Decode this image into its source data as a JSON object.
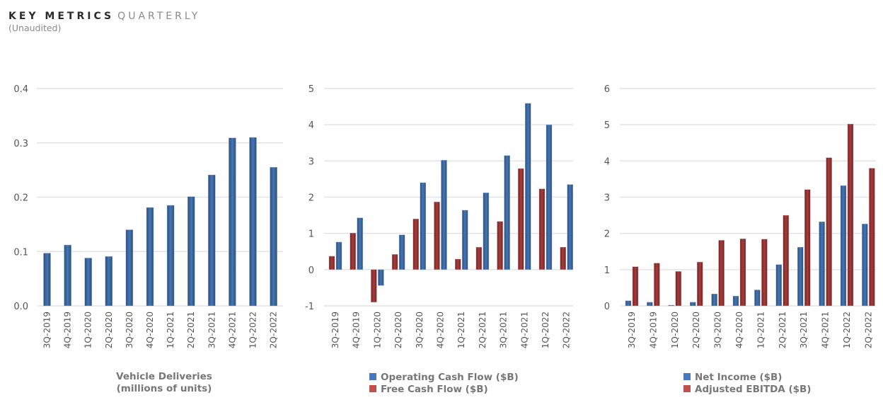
{
  "header": {
    "title_bold": "KEY METRICS",
    "title_light": "QUARTERLY",
    "subtitle": "(Unaudited)"
  },
  "colors": {
    "blue": "#3d6aa3",
    "blue_dark": "#2c4f7e",
    "red": "#9c3a3a",
    "red_dark": "#772828",
    "grid": "#e3e3e3",
    "legend_blue": "#4a78c0",
    "legend_red": "#c0504d"
  },
  "chart_data": [
    {
      "type": "bar",
      "title": "",
      "xlabel": "Vehicle Deliveries",
      "xlabel2": "(millions of units)",
      "ylabel": "",
      "ylim": [
        0,
        0.4
      ],
      "yticks": [
        "0.4",
        "0.3",
        "0.2",
        "0.1",
        "0.0"
      ],
      "ytick_values": [
        0.4,
        0.3,
        0.2,
        0.1,
        0.0
      ],
      "grid": true,
      "categories": [
        "3Q-2019",
        "4Q-2019",
        "1Q-2020",
        "2Q-2020",
        "3Q-2020",
        "4Q-2020",
        "1Q-2021",
        "2Q-2021",
        "3Q-2021",
        "4Q-2021",
        "1Q-2022",
        "2Q-2022"
      ],
      "series": [
        {
          "name": "Vehicle Deliveries",
          "color": "blue",
          "values": [
            0.097,
            0.112,
            0.088,
            0.091,
            0.14,
            0.181,
            0.185,
            0.201,
            0.241,
            0.309,
            0.31,
            0.255
          ]
        }
      ],
      "legend": []
    },
    {
      "type": "bar",
      "title": "",
      "xlabel": "",
      "ylabel": "",
      "ylim": [
        -1,
        5
      ],
      "yticks": [
        "5",
        "4",
        "3",
        "2",
        "1",
        "0",
        "-1"
      ],
      "ytick_values": [
        5,
        4,
        3,
        2,
        1,
        0,
        -1
      ],
      "grid": true,
      "categories": [
        "3Q-2019",
        "4Q-2019",
        "1Q-2020",
        "2Q-2020",
        "3Q-2020",
        "4Q-2020",
        "1Q-2021",
        "2Q-2021",
        "3Q-2021",
        "4Q-2021",
        "1Q-2022",
        "2Q-2022"
      ],
      "series": [
        {
          "name": "Free Cash Flow ($B)",
          "color": "red",
          "values": [
            0.37,
            1.01,
            -0.9,
            0.42,
            1.4,
            1.87,
            0.29,
            0.62,
            1.33,
            2.79,
            2.23,
            0.62
          ]
        },
        {
          "name": "Operating Cash Flow ($B)",
          "color": "blue",
          "values": [
            0.76,
            1.43,
            -0.44,
            0.96,
            2.4,
            3.02,
            1.64,
            2.12,
            3.15,
            4.59,
            4.0,
            2.35
          ]
        }
      ],
      "legend": [
        {
          "label": "Operating Cash Flow ($B)",
          "color": "legend_blue"
        },
        {
          "label": "Free Cash Flow ($B)",
          "color": "legend_red"
        }
      ],
      "legend_position": "bottom"
    },
    {
      "type": "bar",
      "title": "",
      "xlabel": "",
      "ylabel": "",
      "ylim": [
        0,
        6
      ],
      "yticks": [
        "6",
        "5",
        "4",
        "3",
        "2",
        "1",
        "0"
      ],
      "ytick_values": [
        6,
        5,
        4,
        3,
        2,
        1,
        0
      ],
      "grid": true,
      "categories": [
        "3Q-2019",
        "4Q-2019",
        "1Q-2020",
        "2Q-2020",
        "3Q-2020",
        "4Q-2020",
        "1Q-2021",
        "2Q-2021",
        "3Q-2021",
        "4Q-2021",
        "1Q-2022",
        "2Q-2022"
      ],
      "series": [
        {
          "name": "Net Income ($B)",
          "color": "blue",
          "values": [
            0.14,
            0.1,
            0.02,
            0.1,
            0.33,
            0.27,
            0.44,
            1.14,
            1.62,
            2.32,
            3.32,
            2.26
          ]
        },
        {
          "name": "Adjusted EBITDA ($B)",
          "color": "red",
          "values": [
            1.08,
            1.18,
            0.95,
            1.21,
            1.81,
            1.85,
            1.84,
            2.5,
            3.21,
            4.09,
            5.02,
            3.8
          ]
        }
      ],
      "legend": [
        {
          "label": "Net Income ($B)",
          "color": "legend_blue"
        },
        {
          "label": "Adjusted EBITDA ($B)",
          "color": "legend_red"
        }
      ],
      "legend_position": "bottom"
    }
  ]
}
